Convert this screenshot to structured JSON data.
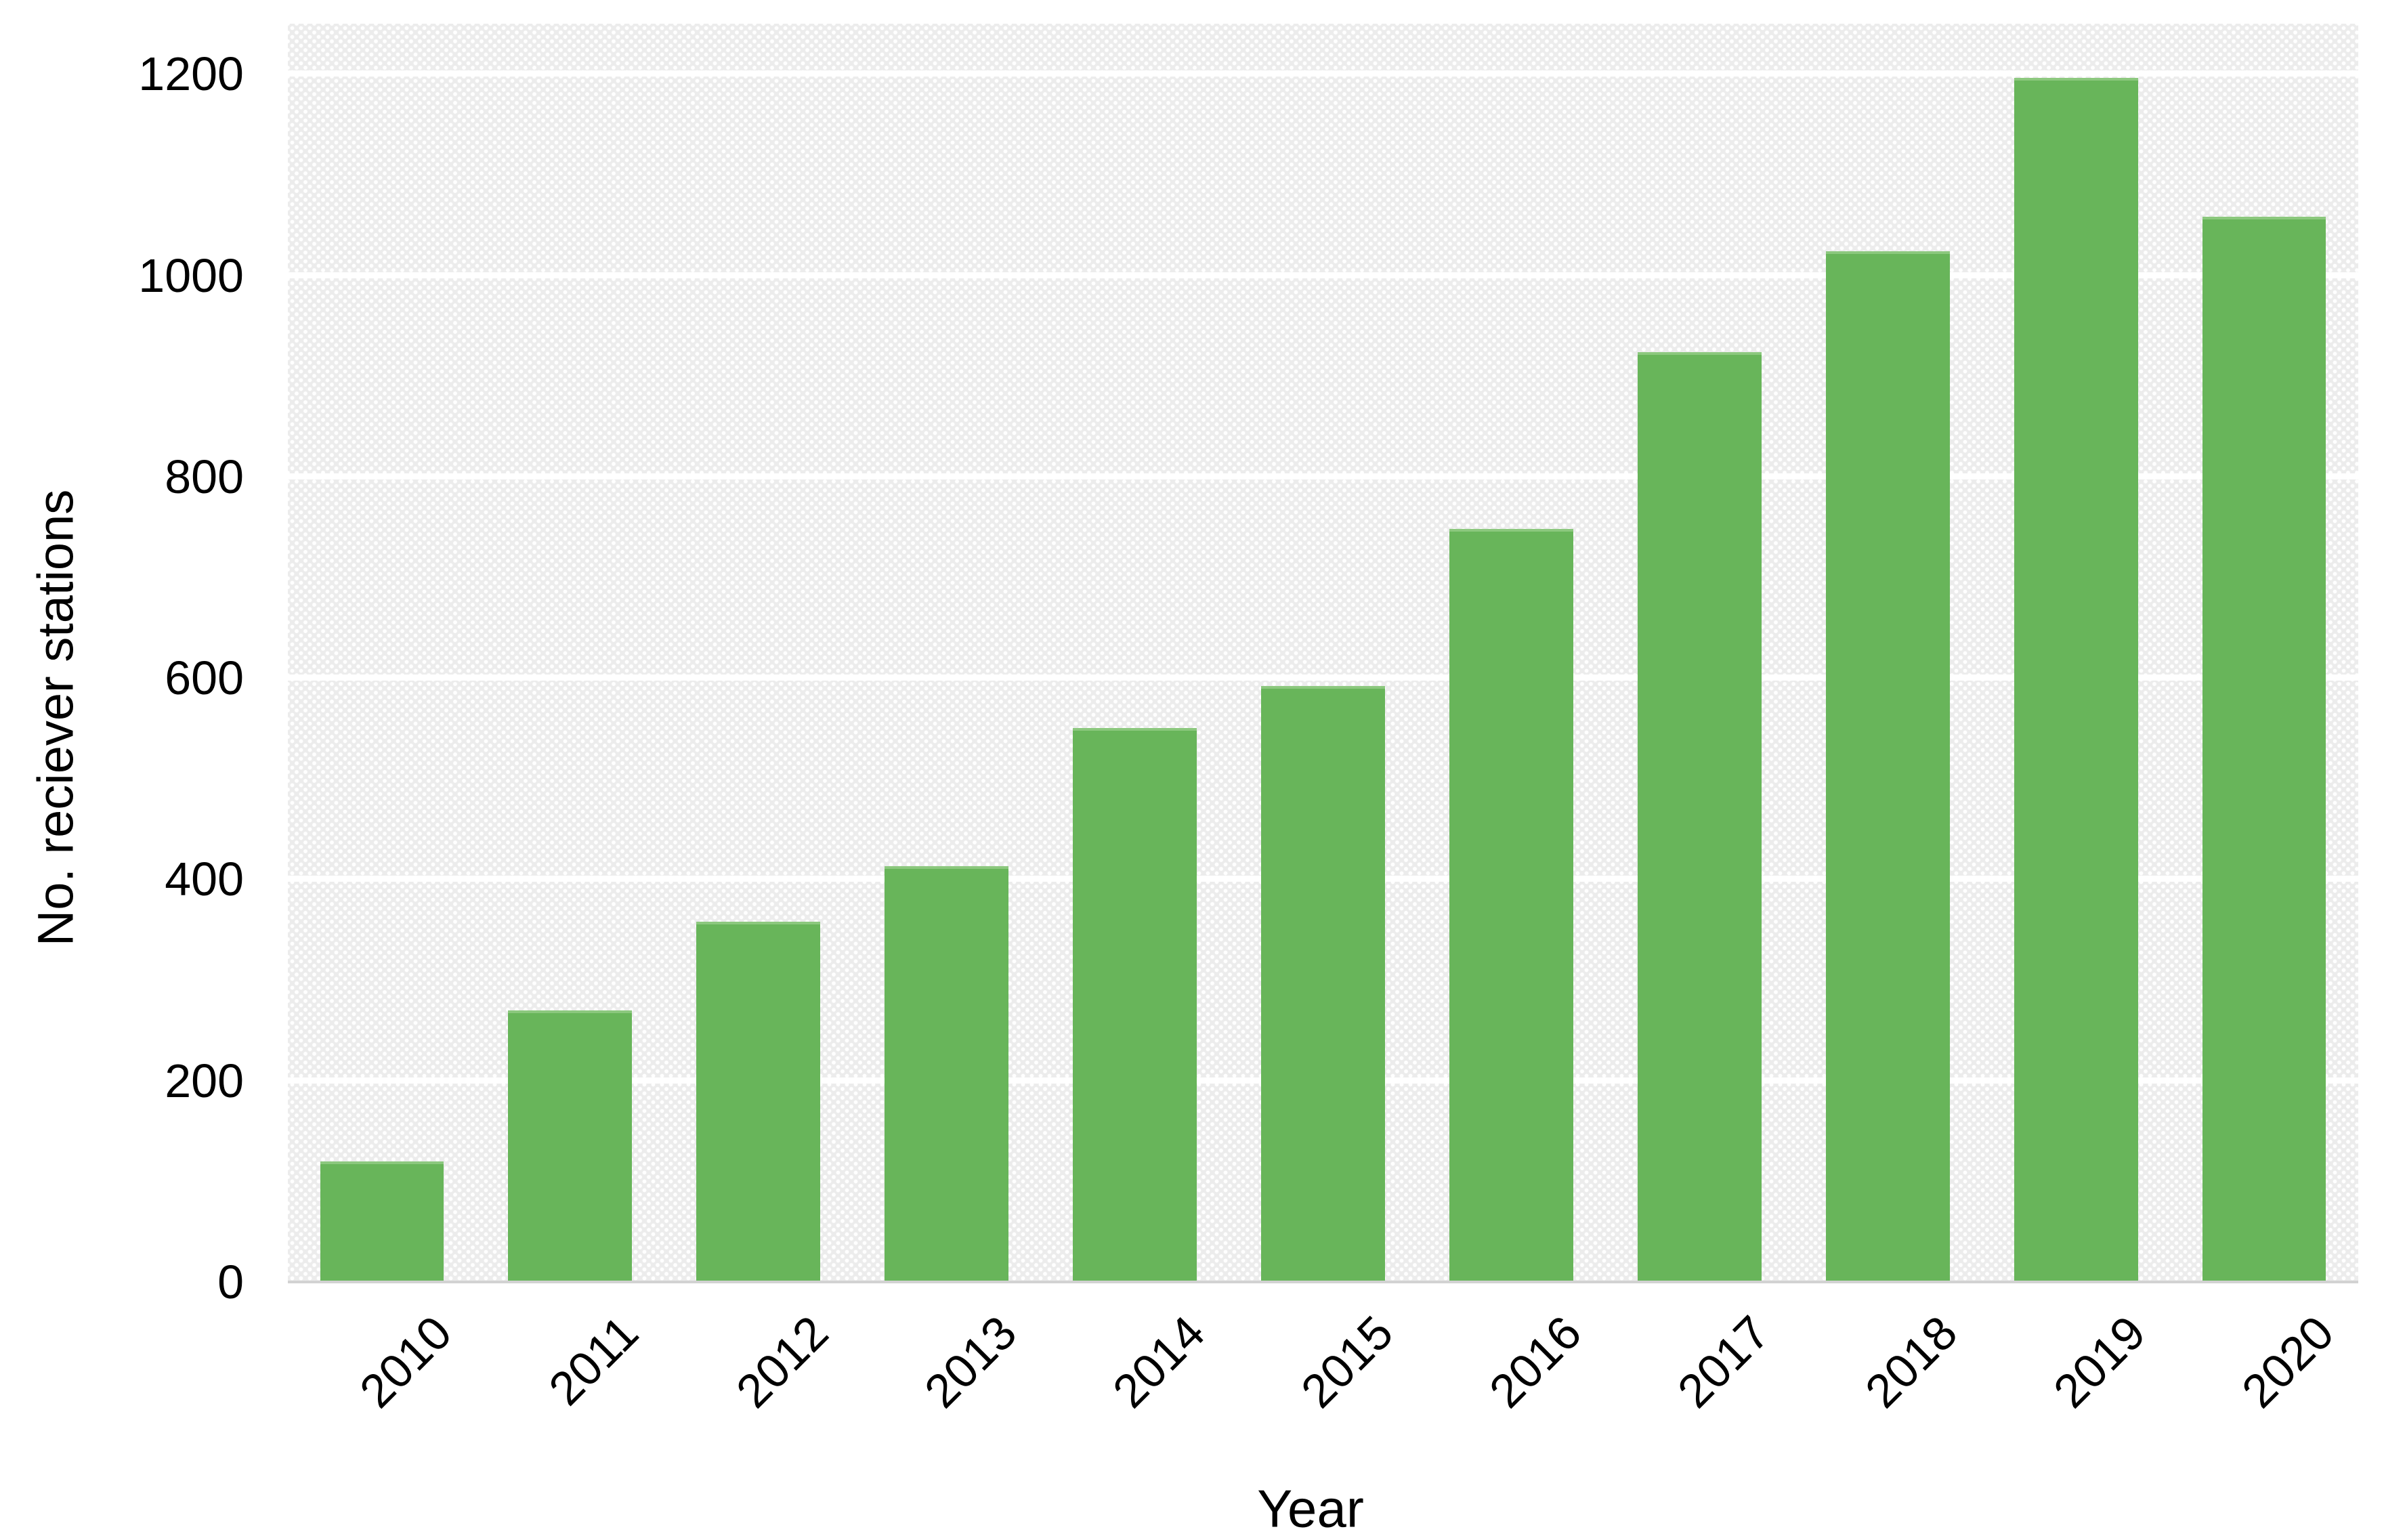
{
  "chart_data": {
    "type": "bar",
    "title": "",
    "xlabel": "Year",
    "ylabel": "No. reciever stations",
    "categories": [
      "2010",
      "2011",
      "2012",
      "2013",
      "2014",
      "2015",
      "2016",
      "2017",
      "2018",
      "2019",
      "2020"
    ],
    "values": [
      120,
      270,
      358,
      413,
      550,
      592,
      748,
      924,
      1024,
      1196,
      1058
    ],
    "yticks": [
      0,
      200,
      400,
      600,
      800,
      1000,
      1200
    ],
    "ylim": [
      0,
      1250
    ],
    "grid": "horizontal white gridlines over dotted light-gray plot background",
    "legend_position": "none",
    "colors": {
      "bar_fill": "#68b55a",
      "bar_edge": "#8cc87e",
      "plot_bg": "#ececec",
      "gridline": "#ffffff",
      "baseline": "#d2d2d2",
      "text": "#000000",
      "page_bg": "#ffffff"
    }
  }
}
